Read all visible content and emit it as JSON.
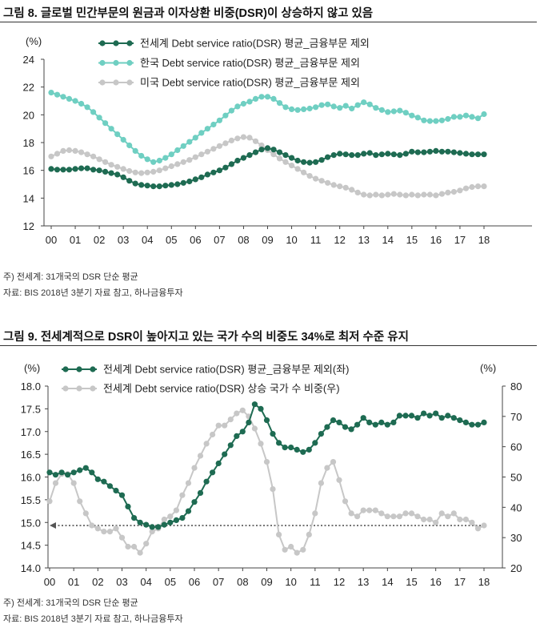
{
  "figure8": {
    "title": "그림 8. 글로벌 민간부문의 원금과 이자상환 비중(DSR)이 상승하지 않고 있음",
    "note": "주) 전세계: 31개국의 DSR 단순 평균",
    "source": "자료: BIS 2018년 3분기 자료 참고, 하나금융투자"
  },
  "figure9": {
    "title": "그림 9. 전세계적으로 DSR이 높아지고 있는 국가 수의 비중도 34%로 최저 수준 유지",
    "note": "주) 전세계: 31개국의 DSR 단순 평균",
    "source": "자료: BIS 2018년 3분기 자료 참고, 하나금융투자"
  },
  "chart_data": [
    {
      "type": "line",
      "y_unit": "(%)",
      "ylim": [
        12,
        24
      ],
      "yticks": [
        "12",
        "14",
        "16",
        "18",
        "20",
        "22",
        "24"
      ],
      "xticks": [
        "00",
        "01",
        "02",
        "03",
        "04",
        "05",
        "06",
        "07",
        "08",
        "09",
        "10",
        "11",
        "12",
        "13",
        "14",
        "15",
        "16",
        "17",
        "18"
      ],
      "grid": false,
      "legend_position": "top",
      "series": [
        {
          "name": "전세계 Debt service ratio(DSR) 평균_금융부문 제외",
          "color": "#1e6b52",
          "values": [
            16.1,
            16.05,
            16.05,
            16.05,
            16.1,
            16.15,
            16.15,
            16.05,
            16.0,
            15.9,
            15.8,
            15.7,
            15.5,
            15.25,
            15.05,
            14.95,
            14.9,
            14.85,
            14.85,
            14.9,
            14.95,
            15.0,
            15.1,
            15.2,
            15.35,
            15.5,
            15.7,
            15.85,
            16.0,
            16.2,
            16.45,
            16.7,
            16.9,
            17.1,
            17.3,
            17.5,
            17.6,
            17.5,
            17.3,
            17.1,
            16.9,
            16.7,
            16.6,
            16.55,
            16.6,
            16.75,
            16.95,
            17.1,
            17.2,
            17.15,
            17.1,
            17.1,
            17.2,
            17.25,
            17.1,
            17.15,
            17.2,
            17.15,
            17.1,
            17.2,
            17.35,
            17.3,
            17.3,
            17.35,
            17.4,
            17.35,
            17.35,
            17.3,
            17.25,
            17.2,
            17.15,
            17.15,
            17.15
          ]
        },
        {
          "name": "한국 Debt service ratio(DSR) 평균_금융부문 제외",
          "color": "#6fcfc2",
          "values": [
            21.6,
            21.45,
            21.3,
            21.15,
            21.0,
            20.8,
            20.55,
            20.2,
            19.8,
            19.4,
            19.0,
            18.6,
            18.2,
            17.8,
            17.4,
            17.05,
            16.8,
            16.6,
            16.7,
            16.9,
            17.15,
            17.45,
            17.75,
            18.05,
            18.35,
            18.7,
            19.0,
            19.3,
            19.6,
            19.95,
            20.3,
            20.6,
            20.8,
            20.95,
            21.15,
            21.3,
            21.3,
            21.15,
            20.85,
            20.55,
            20.4,
            20.35,
            20.4,
            20.45,
            20.55,
            20.7,
            20.75,
            20.6,
            20.5,
            20.65,
            20.45,
            20.7,
            20.9,
            20.75,
            20.5,
            20.35,
            20.2,
            20.25,
            20.3,
            20.15,
            19.95,
            19.8,
            19.6,
            19.55,
            19.55,
            19.6,
            19.7,
            19.85,
            19.85,
            19.95,
            19.85,
            19.75,
            20.05
          ]
        },
        {
          "name": "미국 Debt service ratio(DSR) 평균_금융부문 제외",
          "color": "#c7c7c7",
          "values": [
            17.0,
            17.2,
            17.4,
            17.45,
            17.4,
            17.3,
            17.15,
            17.0,
            16.8,
            16.6,
            16.4,
            16.25,
            16.1,
            15.95,
            15.85,
            15.8,
            15.85,
            15.9,
            16.0,
            16.15,
            16.3,
            16.45,
            16.6,
            16.75,
            16.95,
            17.15,
            17.35,
            17.55,
            17.75,
            17.95,
            18.15,
            18.3,
            18.4,
            18.35,
            18.1,
            17.8,
            17.45,
            17.15,
            16.85,
            16.6,
            16.35,
            16.1,
            15.85,
            15.6,
            15.4,
            15.25,
            15.1,
            14.95,
            14.85,
            14.75,
            14.6,
            14.4,
            14.25,
            14.2,
            14.25,
            14.2,
            14.25,
            14.3,
            14.25,
            14.2,
            14.25,
            14.2,
            14.25,
            14.25,
            14.2,
            14.3,
            14.4,
            14.45,
            14.55,
            14.7,
            14.8,
            14.85,
            14.85
          ]
        }
      ]
    },
    {
      "type": "line",
      "y_unit_left": "(%)",
      "y_unit_right": "(%)",
      "ylim_left": [
        14.0,
        18.0
      ],
      "ylim_right": [
        20,
        80
      ],
      "yticks_left": [
        "14.0",
        "14.5",
        "15.0",
        "15.5",
        "16.0",
        "16.5",
        "17.0",
        "17.5",
        "18.0"
      ],
      "yticks_right": [
        "20",
        "30",
        "40",
        "50",
        "60",
        "70",
        "80"
      ],
      "xticks": [
        "00",
        "01",
        "02",
        "03",
        "04",
        "05",
        "06",
        "07",
        "08",
        "09",
        "10",
        "11",
        "12",
        "13",
        "14",
        "15",
        "16",
        "17",
        "18"
      ],
      "reference_line": {
        "axis": "right",
        "value": 34,
        "style": "dotted arrow"
      },
      "grid": false,
      "legend_position": "top",
      "series": [
        {
          "name": "전세계 Debt service ratio(DSR) 평균_금융부문 제외(좌)",
          "axis": "left",
          "color": "#1e6b52",
          "values": [
            16.1,
            16.05,
            16.1,
            16.05,
            16.1,
            16.15,
            16.2,
            16.1,
            15.95,
            15.9,
            15.8,
            15.7,
            15.6,
            15.35,
            15.1,
            15.0,
            14.95,
            14.9,
            14.9,
            14.95,
            15.0,
            15.05,
            15.1,
            15.25,
            15.45,
            15.65,
            15.9,
            16.1,
            16.3,
            16.5,
            16.7,
            16.9,
            17.0,
            17.2,
            17.6,
            17.5,
            17.25,
            16.95,
            16.75,
            16.65,
            16.65,
            16.6,
            16.55,
            16.6,
            16.75,
            16.95,
            17.1,
            17.25,
            17.2,
            17.1,
            17.05,
            17.15,
            17.3,
            17.2,
            17.15,
            17.2,
            17.15,
            17.2,
            17.35,
            17.35,
            17.35,
            17.3,
            17.4,
            17.35,
            17.4,
            17.3,
            17.35,
            17.3,
            17.25,
            17.2,
            17.15,
            17.15,
            17.2
          ]
        },
        {
          "name": "전세계 Debt service ratio(DSR) 상승 국가 수 비중(우)",
          "axis": "right",
          "color": "#c7c7c7",
          "values": [
            42,
            48,
            51,
            51,
            48,
            42,
            38,
            34,
            33,
            32,
            32,
            33,
            30,
            27,
            27,
            25,
            28,
            32,
            33,
            36,
            37,
            39,
            44,
            48,
            53,
            57,
            61,
            64,
            67,
            67,
            69,
            71,
            72,
            70,
            66,
            61,
            55,
            46,
            31,
            26,
            27,
            25,
            26,
            31,
            38,
            48,
            53,
            55,
            49,
            42,
            38,
            37,
            39,
            39,
            39,
            38,
            37,
            37,
            37,
            38,
            38,
            37,
            36,
            36,
            35,
            38,
            37,
            38,
            36,
            36,
            35,
            33,
            34
          ]
        }
      ]
    }
  ]
}
